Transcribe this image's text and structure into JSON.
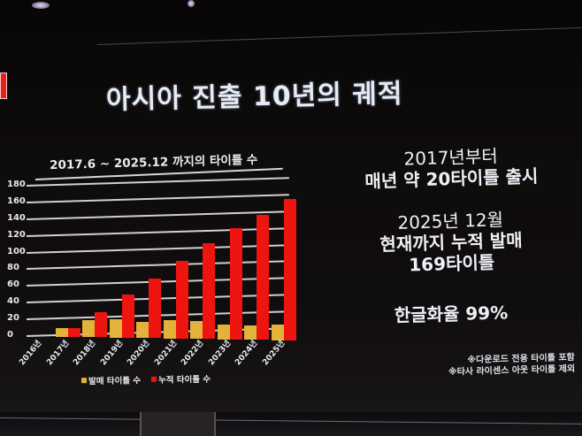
{
  "slide": {
    "title": "아시아 진출 10년의 궤적",
    "chart_title": "2017.6 ~ 2025.12 까지의 타이틀 수",
    "right_panel": {
      "block1": {
        "line1": "2017년부터",
        "line2": "매년 약 20타이틀 출시"
      },
      "block2": {
        "line1": "2025년 12월",
        "line2": "현재까지 누적 발매",
        "line3": "169타이틀"
      },
      "block3": {
        "line1": "한글화율 99%"
      }
    },
    "notes": [
      "※다운로드 전용 타이틀 포함",
      "※타사 라이센스 아웃 타이틀 제외"
    ],
    "legend": [
      {
        "label": "발매 타이틀 수",
        "color": "#e2b23a"
      },
      {
        "label": "누적 타이틀 수",
        "color": "#ee1410"
      }
    ]
  },
  "chart_data": {
    "type": "bar",
    "title": "2017.6 ~ 2025.12 까지의 타이틀 수",
    "xlabel": "",
    "ylabel": "",
    "ylim": [
      0,
      180
    ],
    "yticks": [
      0,
      20,
      40,
      60,
      80,
      100,
      120,
      140,
      160,
      180
    ],
    "grid": true,
    "legend_position": "bottom",
    "categories": [
      "2016년",
      "2017년",
      "2018년",
      "2019년",
      "2020년",
      "2021년",
      "2022년",
      "2023년",
      "2024년",
      "2025년"
    ],
    "series": [
      {
        "name": "발매 타이틀 수",
        "color": "#e2b23a",
        "values": [
          0,
          10,
          20,
          22,
          19,
          22,
          22,
          18,
          17,
          19
        ]
      },
      {
        "name": "누적 타이틀 수",
        "color": "#ee1410",
        "values": [
          0,
          10,
          30,
          52,
          71,
          93,
          115,
          133,
          150,
          169
        ]
      }
    ]
  }
}
